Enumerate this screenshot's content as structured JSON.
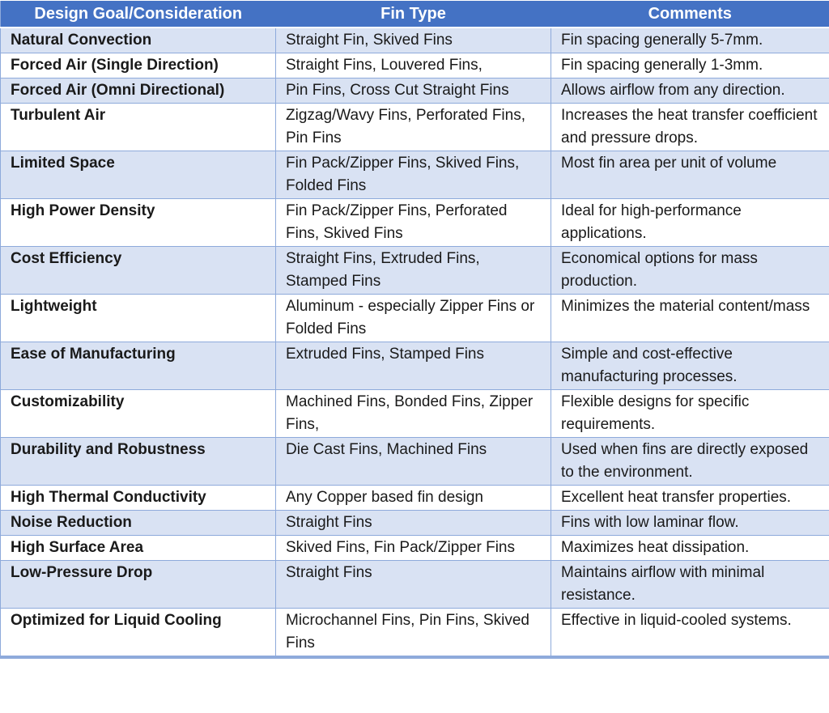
{
  "colors": {
    "header_bg": "#4472C4",
    "header_text": "#FFFFFF",
    "band_bg": "#D9E2F3",
    "row_bg": "#FFFFFF",
    "border_color": "#8EAADB",
    "text_color": "#1A1A1A"
  },
  "table": {
    "columns": {
      "goal": "Design Goal/Consideration",
      "fin_type": "Fin Type",
      "comments": "Comments"
    },
    "rows": [
      {
        "goal": "Natural Convection",
        "fin_type": "Straight Fin, Skived Fins",
        "comments": "Fin spacing generally 5-7mm."
      },
      {
        "goal": "Forced Air (Single Direction)",
        "fin_type": "Straight Fins, Louvered Fins,",
        "comments": "Fin spacing generally 1-3mm."
      },
      {
        "goal": "Forced Air (Omni Directional)",
        "fin_type": "Pin Fins, Cross Cut Straight Fins",
        "comments": "Allows airflow from any direction."
      },
      {
        "goal": "Turbulent Air",
        "fin_type": "Zigzag/Wavy Fins, Perforated Fins, Pin Fins",
        "comments": "Increases the heat transfer coefficient and pressure drops."
      },
      {
        "goal": "Limited Space",
        "fin_type": "Fin Pack/Zipper Fins, Skived Fins, Folded Fins",
        "comments": "Most fin area per unit of volume"
      },
      {
        "goal": "High Power Density",
        "fin_type": "Fin Pack/Zipper Fins, Perforated Fins, Skived Fins",
        "comments": "Ideal for high-performance applications."
      },
      {
        "goal": "Cost Efficiency",
        "fin_type": "Straight Fins, Extruded Fins, Stamped Fins",
        "comments": "Economical options for mass production."
      },
      {
        "goal": "Lightweight",
        "fin_type": "Aluminum - especially Zipper Fins or Folded Fins",
        "comments": "Minimizes the material content/mass"
      },
      {
        "goal": "Ease of Manufacturing",
        "fin_type": "Extruded Fins, Stamped Fins",
        "comments": "Simple and cost-effective manufacturing processes."
      },
      {
        "goal": "Customizability",
        "fin_type": "Machined Fins, Bonded Fins, Zipper Fins,",
        "comments": "Flexible designs for specific requirements."
      },
      {
        "goal": "Durability and Robustness",
        "fin_type": "Die Cast Fins, Machined Fins",
        "comments": "Used when fins are directly exposed to the environment."
      },
      {
        "goal": "High Thermal Conductivity",
        "fin_type": "Any Copper based fin design",
        "comments": "Excellent heat transfer properties."
      },
      {
        "goal": "Noise Reduction",
        "fin_type": "Straight Fins",
        "comments": "Fins with low laminar flow."
      },
      {
        "goal": "High Surface Area",
        "fin_type": "Skived Fins, Fin Pack/Zipper Fins",
        "comments": "Maximizes heat dissipation."
      },
      {
        "goal": "Low-Pressure Drop",
        "fin_type": "Straight Fins",
        "comments": "Maintains airflow with minimal resistance."
      },
      {
        "goal": "Optimized for Liquid Cooling",
        "fin_type": "Microchannel Fins, Pin Fins, Skived Fins",
        "comments": "Effective in liquid-cooled systems."
      }
    ]
  }
}
